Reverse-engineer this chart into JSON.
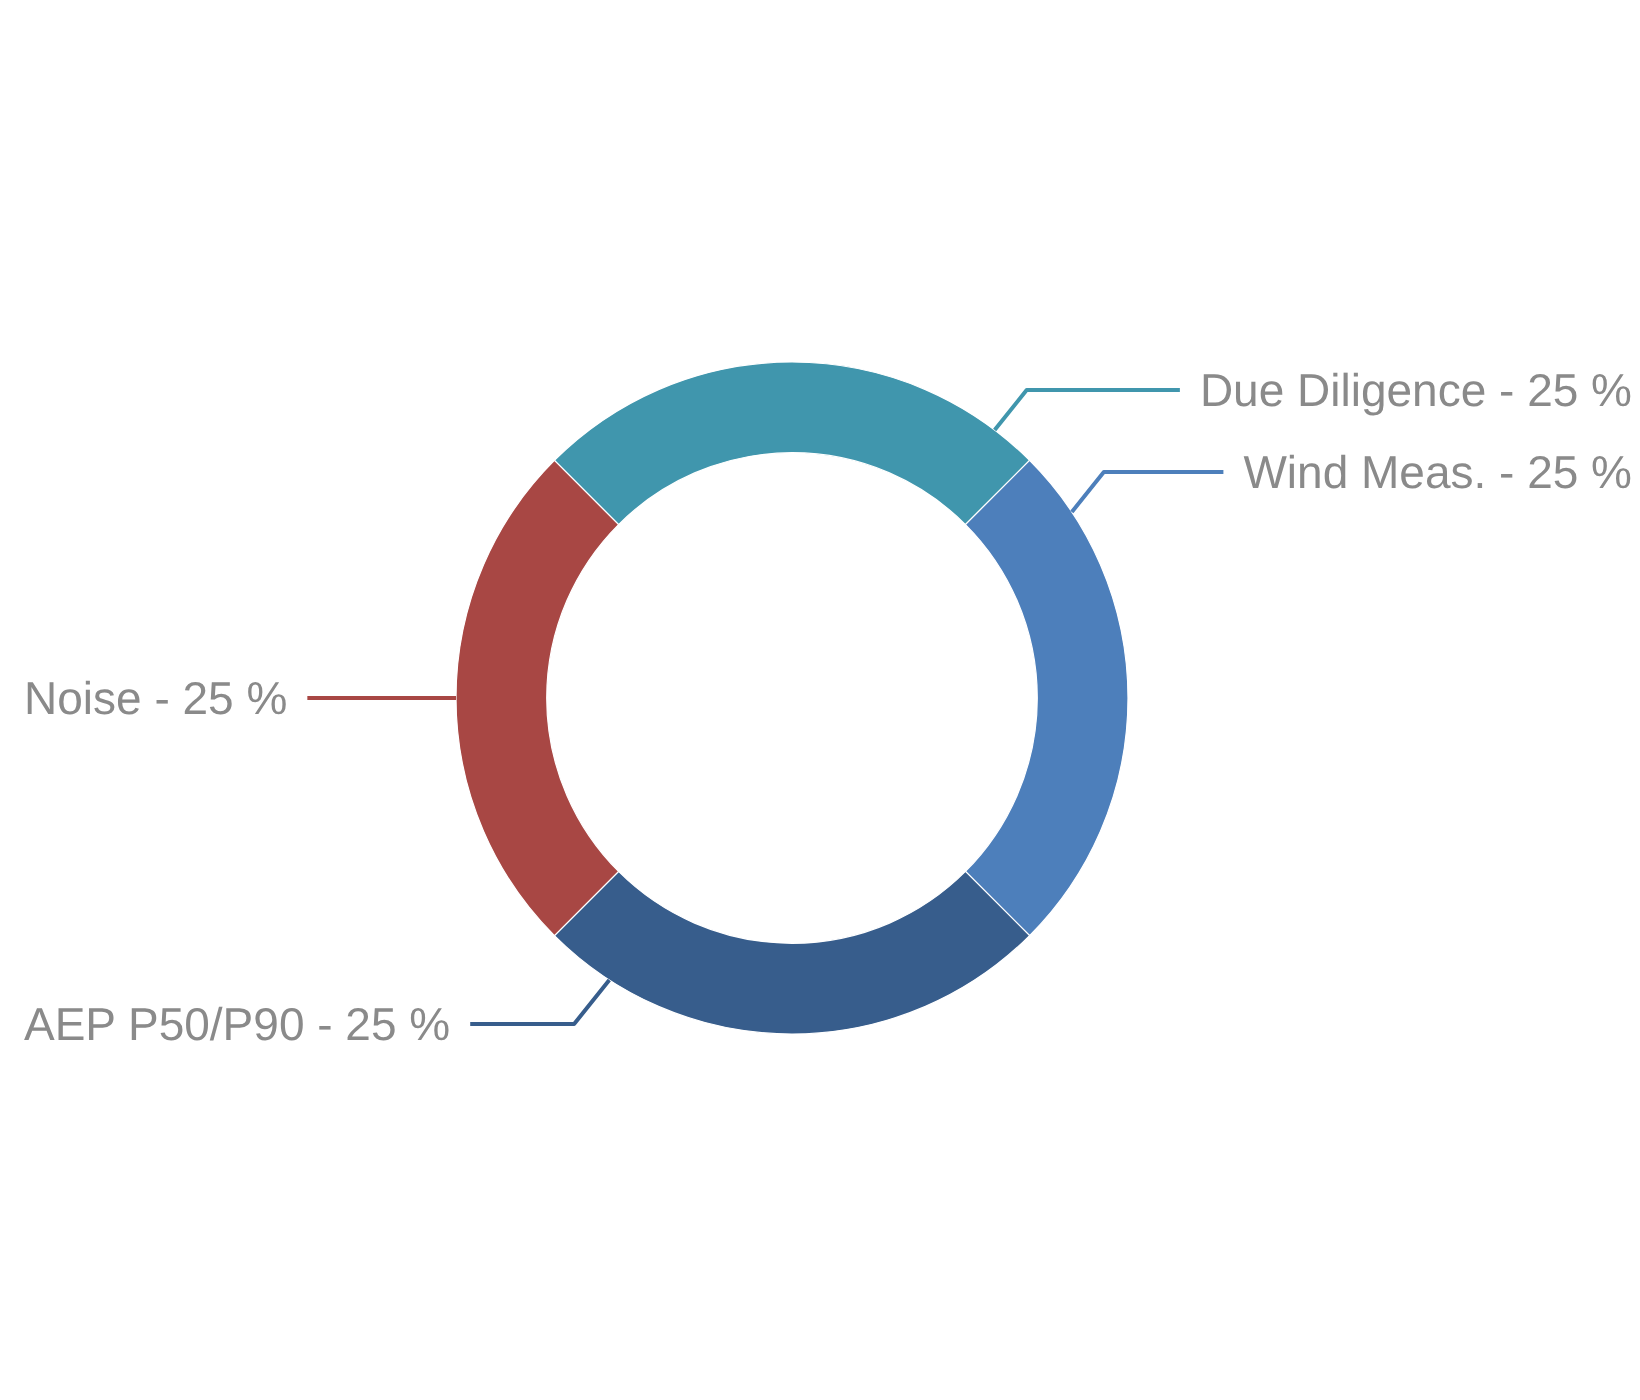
{
  "chart_data": {
    "type": "donut",
    "categories": [
      "Due Diligence",
      "Wind Meas.",
      "AEP P50/P90",
      "Noise"
    ],
    "values": [
      25,
      25,
      25,
      25
    ],
    "colors": [
      "#4096ad",
      "#4d7fbb",
      "#375d8c",
      "#a84744"
    ],
    "value_labels": [
      "25 %",
      "25 %",
      "25 %",
      "25 %"
    ]
  }
}
